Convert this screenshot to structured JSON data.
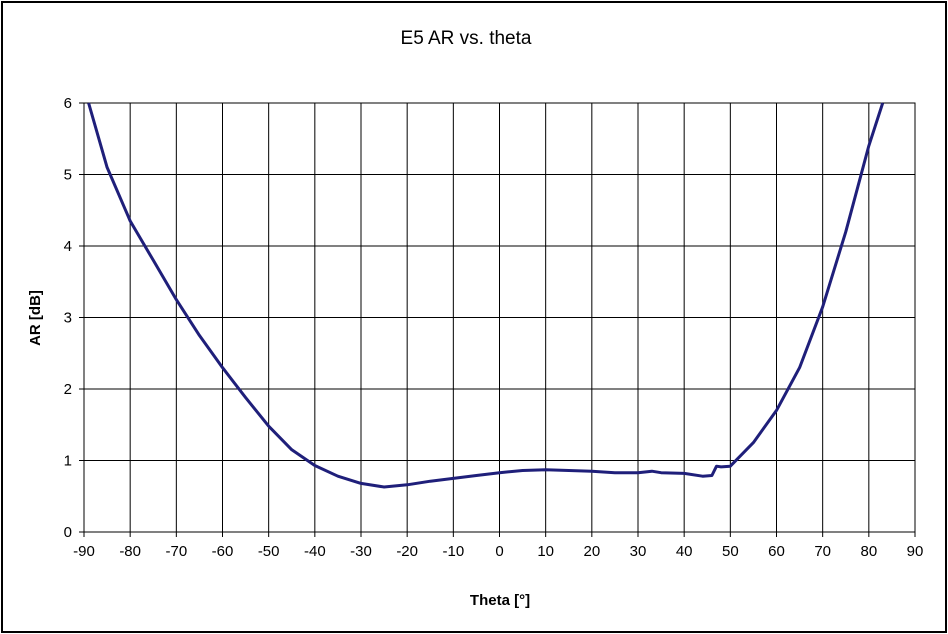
{
  "chart_data": {
    "type": "line",
    "title": "E5 AR vs. theta",
    "xlabel": "Theta [°]",
    "ylabel": "AR [dB]",
    "xlim": [
      -90,
      90
    ],
    "ylim": [
      0,
      6
    ],
    "xticks": [
      -90,
      -80,
      -70,
      -60,
      -50,
      -40,
      -30,
      -20,
      -10,
      0,
      10,
      20,
      30,
      40,
      50,
      60,
      70,
      80,
      90
    ],
    "yticks": [
      0,
      1,
      2,
      3,
      4,
      5,
      6
    ],
    "grid": true,
    "legend": "none",
    "line_color": "#1f1f7a",
    "series": [
      {
        "name": "AR",
        "x": [
          -89,
          -85,
          -80,
          -75,
          -70,
          -65,
          -60,
          -55,
          -50,
          -45,
          -40,
          -35,
          -30,
          -25,
          -20,
          -15,
          -10,
          -5,
          0,
          5,
          10,
          15,
          20,
          25,
          30,
          33,
          35,
          40,
          44,
          46,
          47,
          48,
          50,
          55,
          60,
          65,
          70,
          75,
          80,
          83
        ],
        "y": [
          6.0,
          5.1,
          4.35,
          3.8,
          3.25,
          2.75,
          2.3,
          1.88,
          1.48,
          1.15,
          0.93,
          0.78,
          0.68,
          0.63,
          0.66,
          0.71,
          0.75,
          0.79,
          0.83,
          0.86,
          0.87,
          0.86,
          0.85,
          0.83,
          0.83,
          0.85,
          0.83,
          0.82,
          0.78,
          0.79,
          0.92,
          0.91,
          0.92,
          1.25,
          1.7,
          2.3,
          3.15,
          4.2,
          5.4,
          6.0
        ]
      }
    ]
  }
}
